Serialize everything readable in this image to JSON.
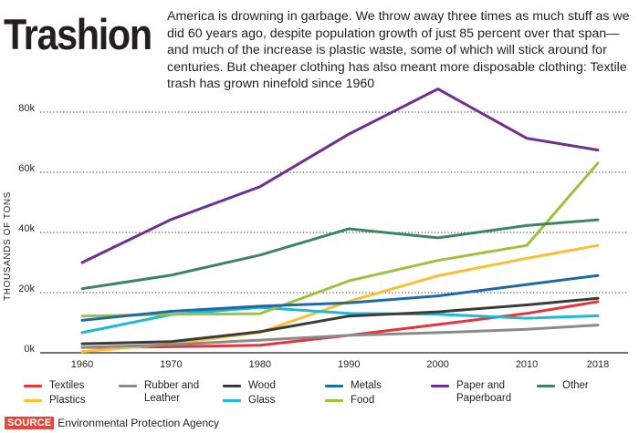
{
  "header": {
    "title": "Trashion",
    "subtitle": "America is drowning in garbage. We throw away three times as much stuff as we did 60 years ago, despite population growth of just 85 percent over that span—and much of the increase is plastic waste, some of which will stick around for centuries. But cheaper clothing has also meant more disposable clothing: Textile trash has grown ninefold since 1960"
  },
  "chart_data": {
    "type": "line",
    "ylabel": "THOUSANDS OF TONS",
    "xlabel": "",
    "x": [
      1960,
      1970,
      1980,
      1990,
      2000,
      2010,
      2018
    ],
    "ylim": [
      0,
      80000
    ],
    "y_ticks": [
      0,
      20000,
      40000,
      60000,
      80000
    ],
    "y_tick_labels": [
      "0k",
      "20k",
      "40k",
      "60k",
      "80k"
    ],
    "x_tick_labels": [
      "1960",
      "1970",
      "1980",
      "1990",
      "2000",
      "2010",
      "2018"
    ],
    "grid": "horizontal dotted",
    "series": [
      {
        "name": "Textiles",
        "color": "#e6343a",
        "values": [
          1800,
          2000,
          2500,
          5800,
          9400,
          13100,
          17000
        ]
      },
      {
        "name": "Plastics",
        "color": "#fbbf33",
        "values": [
          400,
          2900,
          6800,
          17100,
          25600,
          31400,
          35700
        ]
      },
      {
        "name": "Rubber and Leather",
        "color": "#8b8b8b",
        "values": [
          1800,
          2700,
          4200,
          5800,
          6700,
          7800,
          9200
        ]
      },
      {
        "name": "Glass",
        "color": "#1cb9d8",
        "values": [
          6700,
          12700,
          15100,
          13100,
          12800,
          11500,
          12300
        ]
      },
      {
        "name": "Wood",
        "color": "#3d3a3a",
        "values": [
          3000,
          3700,
          7000,
          12200,
          13600,
          15900,
          18100
        ]
      },
      {
        "name": "Food",
        "color": "#9ac23c",
        "values": [
          12200,
          12800,
          13000,
          23900,
          30700,
          35700,
          63100
        ]
      },
      {
        "name": "Metals",
        "color": "#1e6aa7",
        "values": [
          10800,
          13800,
          15500,
          16600,
          18900,
          22700,
          25700
        ]
      },
      {
        "name": "Paper and Paperboard",
        "color": "#6f2f91",
        "values": [
          30000,
          44300,
          55200,
          72700,
          87700,
          71300,
          67400
        ]
      },
      {
        "name": "Other",
        "color": "#3c8560",
        "values": [
          21300,
          25800,
          32500,
          41200,
          38200,
          42300,
          44200
        ]
      }
    ]
  },
  "legend": [
    {
      "label": "Textiles",
      "color": "#e6343a"
    },
    {
      "label": "Plastics",
      "color": "#fbbf33"
    },
    {
      "label": "Rubber and Leather",
      "color": "#8b8b8b"
    },
    {
      "label": "Glass",
      "color": "#1cb9d8"
    },
    {
      "label": "Wood",
      "color": "#3d3a3a"
    },
    {
      "label": "Food",
      "color": "#9ac23c"
    },
    {
      "label": "Metals",
      "color": "#1e6aa7"
    },
    {
      "label": "Paper and Paperboard",
      "color": "#6f2f91"
    },
    {
      "label": "Other",
      "color": "#3c8560"
    }
  ],
  "source": {
    "badge": "SOURCE",
    "text": "Environmental Protection Agency"
  }
}
